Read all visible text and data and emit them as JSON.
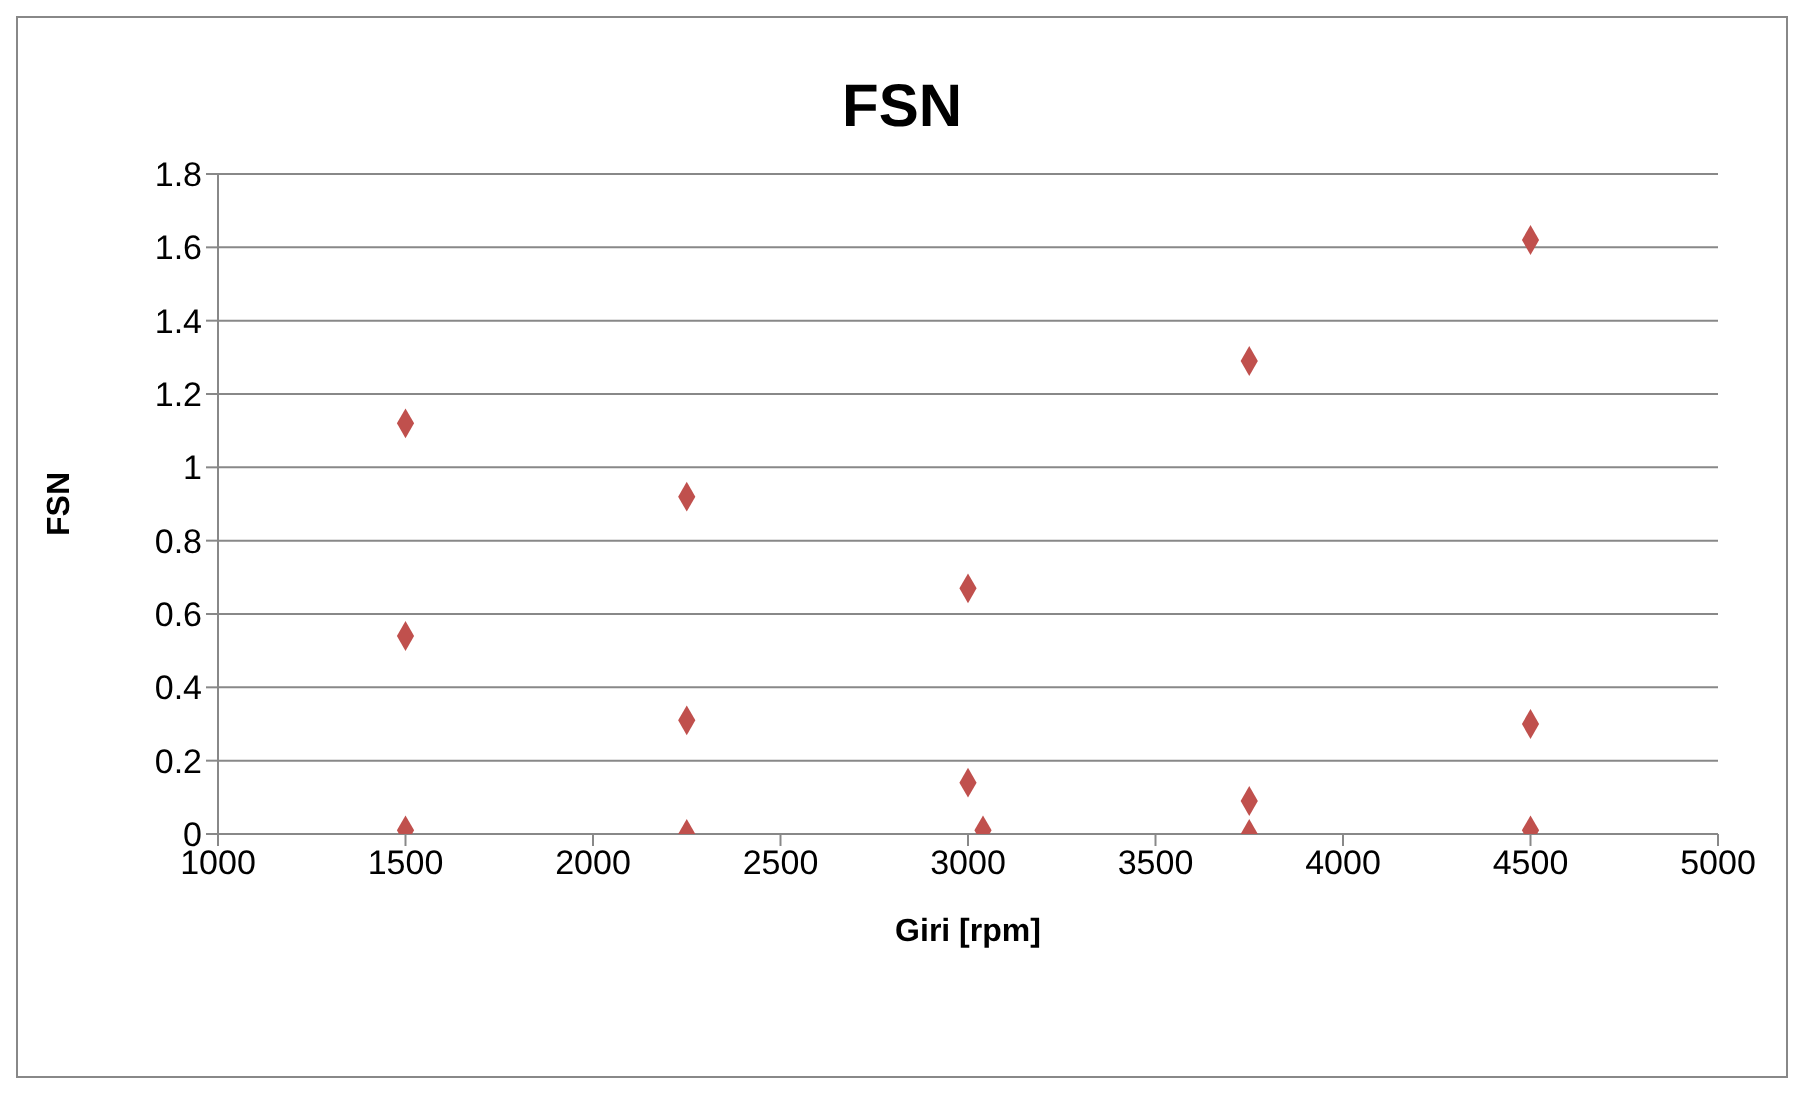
{
  "chart_data": {
    "type": "scatter",
    "title": "FSN",
    "xlabel": "Giri [rpm]",
    "ylabel": "FSN",
    "x": [
      1500,
      1500,
      1500,
      2250,
      2250,
      2250,
      3000,
      3000,
      3040,
      3750,
      3750,
      3750,
      4500,
      4500,
      4500
    ],
    "series": [
      {
        "color": "#c0504d",
        "values": [
          1.12,
          0.54,
          0.01,
          0.92,
          0.31,
          0.0,
          0.67,
          0.14,
          0.01,
          1.29,
          0.09,
          0.0,
          1.62,
          0.3,
          0.01
        ]
      }
    ],
    "xlim": [
      1000,
      5000
    ],
    "xticks": [
      1000,
      1500,
      2000,
      2500,
      3000,
      3500,
      4000,
      4500,
      5000
    ],
    "ylim": [
      0,
      1.8
    ],
    "yticks": [
      0,
      0.2,
      0.4,
      0.6,
      0.8,
      1,
      1.2,
      1.4,
      1.6,
      1.8
    ],
    "grid": "y",
    "marker": "diamond",
    "legend": false
  }
}
